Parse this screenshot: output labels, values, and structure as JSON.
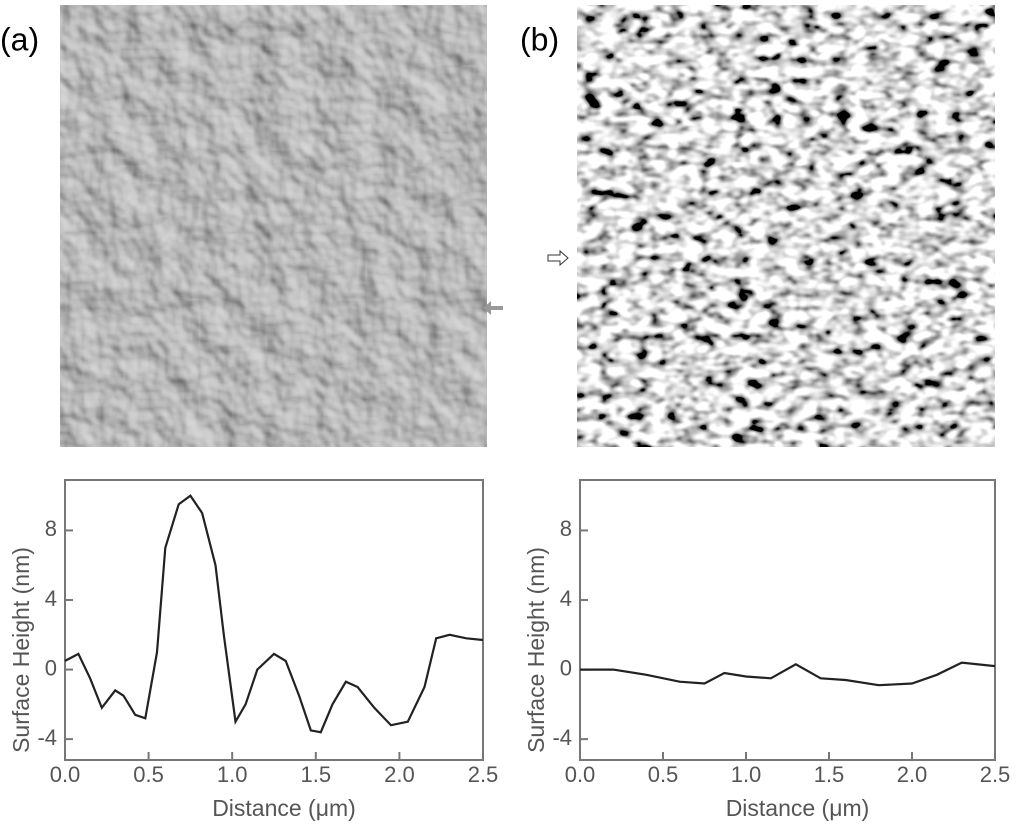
{
  "chart_data": [
    {
      "type": "line",
      "panel_label": "(a)",
      "xlabel": "Distance (μm)",
      "ylabel": "Surface Height (nm)",
      "x": [
        0,
        0.08,
        0.15,
        0.22,
        0.3,
        0.35,
        0.42,
        0.48,
        0.55,
        0.6,
        0.68,
        0.75,
        0.82,
        0.9,
        0.95,
        1.02,
        1.08,
        1.15,
        1.25,
        1.32,
        1.4,
        1.47,
        1.53,
        1.6,
        1.68,
        1.75,
        1.85,
        1.95,
        2.05,
        2.15,
        2.22,
        2.3,
        2.4,
        2.5
      ],
      "values": [
        0.5,
        0.9,
        -0.5,
        -2.2,
        -1.2,
        -1.5,
        -2.6,
        -2.8,
        1,
        7,
        9.5,
        10,
        9,
        6,
        2,
        -3,
        -2,
        0,
        0.9,
        0.5,
        -1.5,
        -3.5,
        -3.6,
        -2,
        -0.7,
        -1,
        -2.2,
        -3.2,
        -3,
        -1,
        1.8,
        2,
        1.8,
        1.7
      ],
      "color": "#222",
      "xlim": [
        0,
        2.5
      ],
      "ylim": [
        -5.2,
        10.9
      ],
      "xticks": [
        {
          "value": 0,
          "label": "0.0"
        },
        0.5,
        {
          "value": 1,
          "label": "1.0"
        },
        1.5,
        {
          "value": 2,
          "label": "2.0"
        },
        2.5
      ],
      "yticks": [
        -4,
        0,
        4,
        8
      ]
    },
    {
      "type": "line",
      "panel_label": "(b)",
      "xlabel": "Distance (μm)",
      "ylabel": "Surface Height (nm)",
      "x": [
        0,
        0.2,
        0.4,
        0.6,
        0.75,
        0.87,
        1.0,
        1.15,
        1.3,
        1.45,
        1.6,
        1.8,
        2.0,
        2.15,
        2.3,
        2.5
      ],
      "values": [
        0,
        0,
        -0.3,
        -0.7,
        -0.8,
        -0.2,
        -0.4,
        -0.5,
        0.3,
        -0.5,
        -0.6,
        -0.9,
        -0.8,
        -0.3,
        0.4,
        0.2
      ],
      "color": "#222",
      "xlim": [
        0,
        2.5
      ],
      "ylim": [
        -5.2,
        10.9
      ],
      "xticks": [
        {
          "value": 0,
          "label": "0.0"
        },
        0.5,
        {
          "value": 1,
          "label": "1.0"
        },
        1.5,
        {
          "value": 2,
          "label": "2.0"
        },
        2.5
      ],
      "yticks": [
        -4,
        0,
        4,
        8
      ]
    }
  ]
}
